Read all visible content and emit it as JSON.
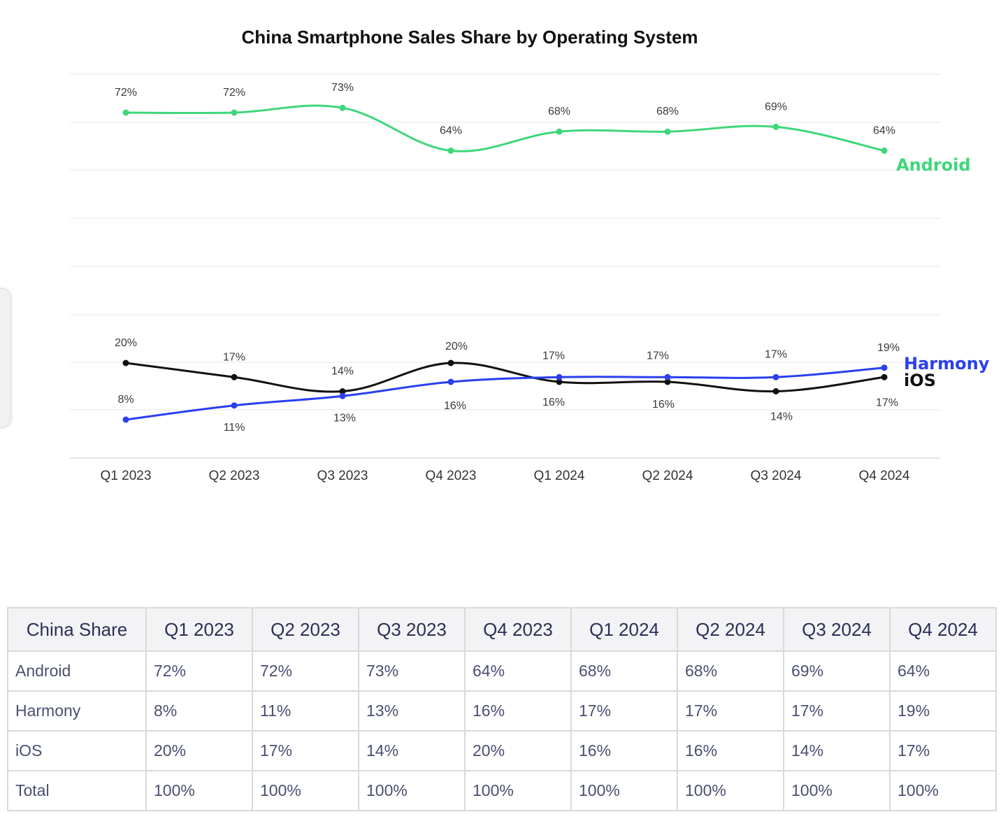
{
  "chart_data": {
    "type": "line",
    "title": "China Smartphone Sales Share by Operating System",
    "categories": [
      "Q1 2023",
      "Q2 2023",
      "Q3 2023",
      "Q4 2023",
      "Q1 2024",
      "Q2 2024",
      "Q3 2024",
      "Q4 2024"
    ],
    "xlabel": "",
    "ylabel": "",
    "grid": true,
    "legend": "series names at right end of lines",
    "series": [
      {
        "name": "Android",
        "color": "#3fd67a",
        "values": [
          72,
          72,
          73,
          64,
          68,
          68,
          69,
          64
        ],
        "labels": [
          "72%",
          "72%",
          "73%",
          "64%",
          "68%",
          "68%",
          "69%",
          "64%"
        ]
      },
      {
        "name": "Harmony",
        "color": "#2a3ff0",
        "values": [
          8,
          11,
          13,
          16,
          17,
          17,
          17,
          19
        ],
        "labels": [
          "8%",
          "11%",
          "13%",
          "16%",
          "17%",
          "17%",
          "17%",
          "19%"
        ]
      },
      {
        "name": "iOS",
        "color": "#111111",
        "values": [
          20,
          17,
          14,
          20,
          16,
          16,
          14,
          17
        ],
        "labels": [
          "20%",
          "17%",
          "14%",
          "20%",
          "16%",
          "16%",
          "14%",
          "17%"
        ]
      }
    ]
  },
  "table": {
    "headers": [
      "China Share",
      "Q1 2023",
      "Q2 2023",
      "Q3 2023",
      "Q4 2023",
      "Q1 2024",
      "Q2 2024",
      "Q3 2024",
      "Q4 2024"
    ],
    "rows": [
      [
        "Android",
        "72%",
        "72%",
        "73%",
        "64%",
        "68%",
        "68%",
        "69%",
        "64%"
      ],
      [
        "Harmony",
        "8%",
        "11%",
        "13%",
        "16%",
        "17%",
        "17%",
        "17%",
        "19%"
      ],
      [
        "iOS",
        "20%",
        "17%",
        "14%",
        "20%",
        "16%",
        "16%",
        "14%",
        "17%"
      ],
      [
        "Total",
        "100%",
        "100%",
        "100%",
        "100%",
        "100%",
        "100%",
        "100%",
        "100%"
      ]
    ]
  }
}
